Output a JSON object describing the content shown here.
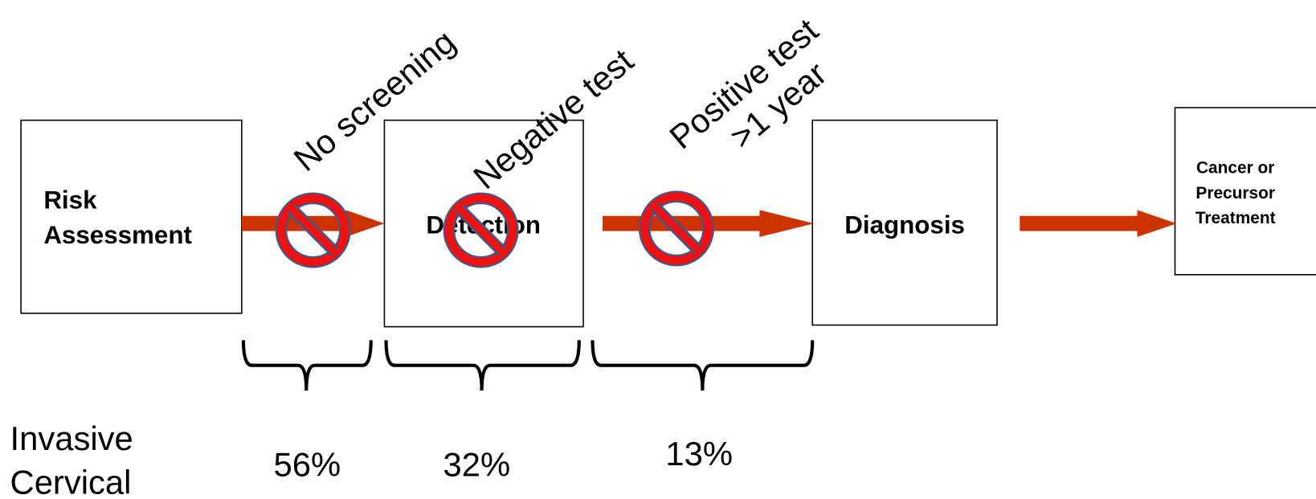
{
  "nodes": [
    {
      "lines": [
        "Risk",
        "Assessment"
      ]
    },
    {
      "lines": [
        "Detection"
      ]
    },
    {
      "lines": [
        "Diagnosis"
      ]
    },
    {
      "lines": [
        "Cancer or",
        "Precursor",
        "Treatment"
      ]
    }
  ],
  "annotations": [
    {
      "lines": [
        "No screening"
      ]
    },
    {
      "lines": [
        "Negative test"
      ]
    },
    {
      "lines": [
        "Positive test",
        ">1 year"
      ]
    }
  ],
  "stats": {
    "label": [
      "Invasive",
      "Cervical"
    ],
    "values": [
      "56%",
      "32%",
      "13%"
    ]
  }
}
